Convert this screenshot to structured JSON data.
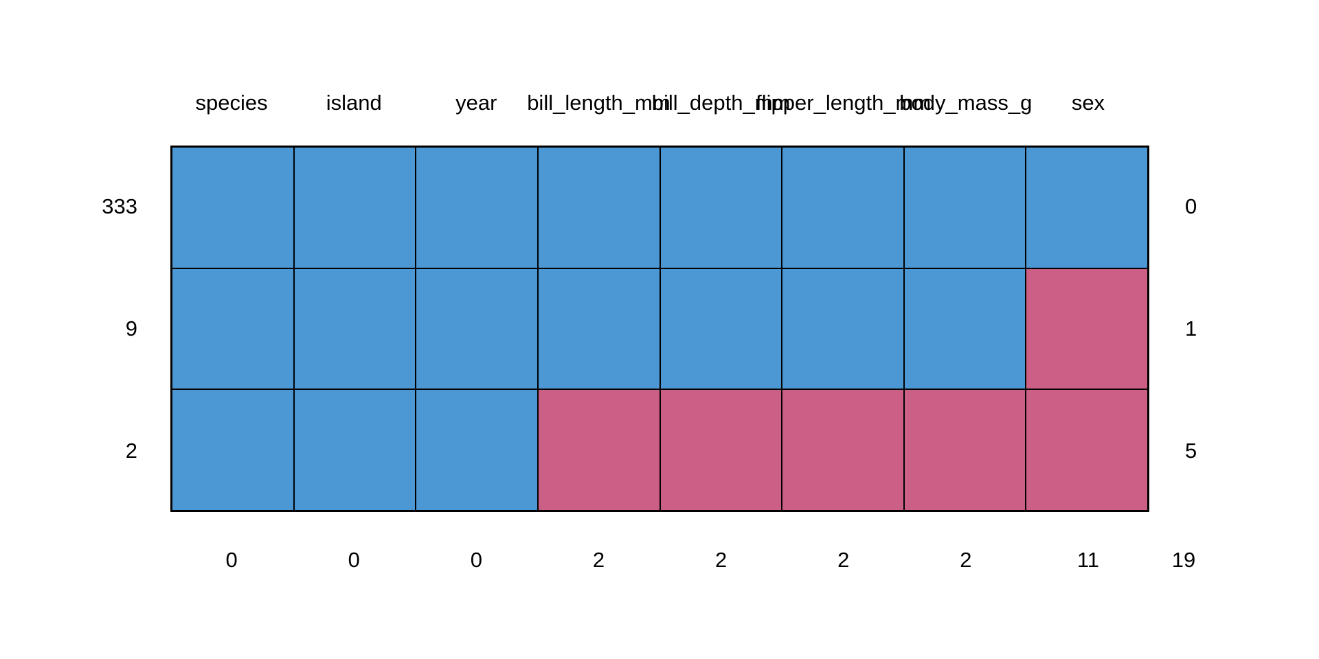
{
  "chart_data": {
    "type": "heatmap",
    "subtype": "missing-data-pattern-plot",
    "title": "",
    "columns": [
      "species",
      "island",
      "year",
      "bill_length_mm",
      "bill_depth_mm",
      "flipper_length_mm",
      "body_mass_g",
      "sex"
    ],
    "pattern_rows": [
      {
        "count": "333",
        "missing_in_pattern": "0",
        "cells": [
          1,
          1,
          1,
          1,
          1,
          1,
          1,
          1
        ]
      },
      {
        "count": "9",
        "missing_in_pattern": "1",
        "cells": [
          1,
          1,
          1,
          1,
          1,
          1,
          1,
          0
        ]
      },
      {
        "count": "2",
        "missing_in_pattern": "5",
        "cells": [
          1,
          1,
          1,
          0,
          0,
          0,
          0,
          0
        ]
      }
    ],
    "column_missing_counts": [
      "0",
      "0",
      "0",
      "2",
      "2",
      "2",
      "2",
      "11"
    ],
    "total_missing": "19",
    "cell_meaning": {
      "1": "observed",
      "0": "missing"
    },
    "colors": {
      "observed": "#4C98D4",
      "missing": "#CC5F85",
      "border": "#000000",
      "text": "#000000",
      "background": "#FFFFFF"
    },
    "legend_position": "none",
    "grid_on": true,
    "axes": {
      "top": "variable names",
      "left": "rows per pattern",
      "right": "missing variables per pattern",
      "bottom": "missing values per variable"
    }
  }
}
